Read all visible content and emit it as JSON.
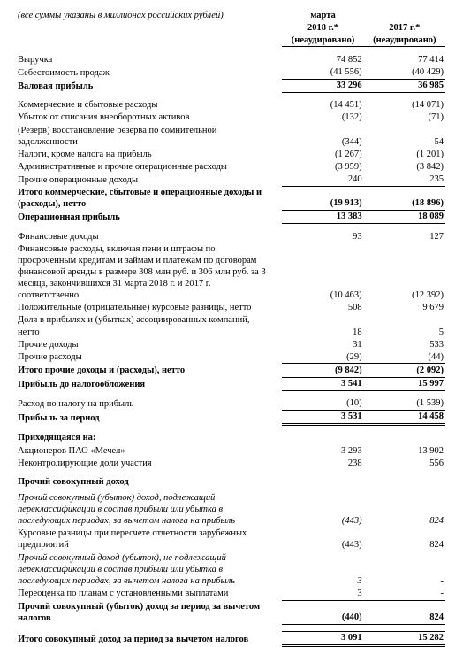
{
  "note": "(все суммы указаны в миллионах российских рублей)",
  "header": {
    "month": "марта",
    "col1_year": "2018 г.*",
    "col2_year": "2017 г.*",
    "unaudited": "(неаудировано)"
  },
  "rows": {
    "revenue": {
      "label": "Выручка",
      "c1": "74 852",
      "c2": "77 414"
    },
    "cogs": {
      "label": "Себестоимость продаж",
      "c1": "(41 556)",
      "c2": "(40 429)"
    },
    "gross": {
      "label": "Валовая прибыль",
      "c1": "33 296",
      "c2": "36 985"
    },
    "sga": {
      "label": "Коммерческие и сбытовые расходы",
      "c1": "(14 451)",
      "c2": "(14 071)"
    },
    "writeoff": {
      "label": "Убыток от списания внеоборотных активов",
      "c1": "(132)",
      "c2": "(71)"
    },
    "provision": {
      "label": "(Резерв) восстановление резерва по сомнительной задолженности",
      "c1": "(344)",
      "c2": "54"
    },
    "taxes": {
      "label": "Налоги, кроме налога на прибыль",
      "c1": "(1 267)",
      "c2": "(1 201)"
    },
    "admin": {
      "label": "Административные и прочие операционные расходы",
      "c1": "(3 959)",
      "c2": "(3 842)"
    },
    "otheropinc": {
      "label": "Прочие операционные доходы",
      "c1": "240",
      "c2": "235"
    },
    "total_op_exp": {
      "label": "Итого коммерческие, сбытовые и операционные доходы и (расходы), нетто",
      "c1": "(19 913)",
      "c2": "(18 896)"
    },
    "op_profit": {
      "label": "Операционная прибыль",
      "c1": "13 383",
      "c2": "18 089"
    },
    "fin_inc": {
      "label": "Финансовые доходы",
      "c1": "93",
      "c2": "127"
    },
    "fin_exp": {
      "label": "Финансовые расходы, включая пени и штрафы по просроченным кредитам и займам и платежам по договорам финансовой аренды в размере 308 млн руб. и 306 млн руб. за 3 месяца, закончившихся 31 марта 2018 г. и 2017 г. соответственно",
      "c1": "(10 463)",
      "c2": "(12 392)"
    },
    "fx": {
      "label": "Положительные (отрицательные) курсовые разницы, нетто",
      "c1": "508",
      "c2": "9 679"
    },
    "assoc": {
      "label": "Доля в прибылях и (убытках) ассоциированных компаний, нетто",
      "c1": "18",
      "c2": "5"
    },
    "other_inc": {
      "label": "Прочие доходы",
      "c1": "31",
      "c2": "533"
    },
    "other_exp": {
      "label": "Прочие расходы",
      "c1": "(29)",
      "c2": "(44)"
    },
    "total_other": {
      "label": "Итого прочие доходы и (расходы), нетто",
      "c1": "(9 842)",
      "c2": "(2 092)"
    },
    "pbt": {
      "label": "Прибыль до налогообложения",
      "c1": "3 541",
      "c2": "15 997"
    },
    "tax": {
      "label": "Расход по налогу на прибыль",
      "c1": "(10)",
      "c2": "(1 539)"
    },
    "net": {
      "label": "Прибыль за период",
      "c1": "3 531",
      "c2": "14 458"
    },
    "attr_to": {
      "label": "Приходящаяся на:"
    },
    "shareholders": {
      "label": "Акционеров ПАО «Мечел»",
      "c1": "3 293",
      "c2": "13 902"
    },
    "nci": {
      "label": "Неконтролирующие доли участия",
      "c1": "238",
      "c2": "556"
    },
    "oci_title": {
      "label": "Прочий совокупный доход"
    },
    "oci_reclass": {
      "label": "Прочий совокупный (убыток) доход, подлежащий переклассификации в состав прибыли или убытка в последующих периодах, за вычетом налога на прибыль",
      "c1": "(443)",
      "c2": "824"
    },
    "oci_fx": {
      "label": "Курсовые разницы при пересчете отчетности зарубежных предприятий",
      "c1": "(443)",
      "c2": "824"
    },
    "oci_noreclass": {
      "label": "Прочий совокупный доход (убыток), не подлежащий переклассификации в состав прибыли или убытка в последующих периодах, за вычетом налога на прибыль",
      "c1": "3",
      "c2": "-"
    },
    "remeasure": {
      "label": "Переоценка по планам с установленными выплатами",
      "c1": "3",
      "c2": "-"
    },
    "oci_total": {
      "label": "Прочий совокупный (убыток) доход за период за вычетом налогов",
      "c1": "(440)",
      "c2": "824"
    },
    "total_comp": {
      "label": "Итого совокупный доход за период за вычетом налогов",
      "c1": "3 091",
      "c2": "15 282"
    }
  }
}
